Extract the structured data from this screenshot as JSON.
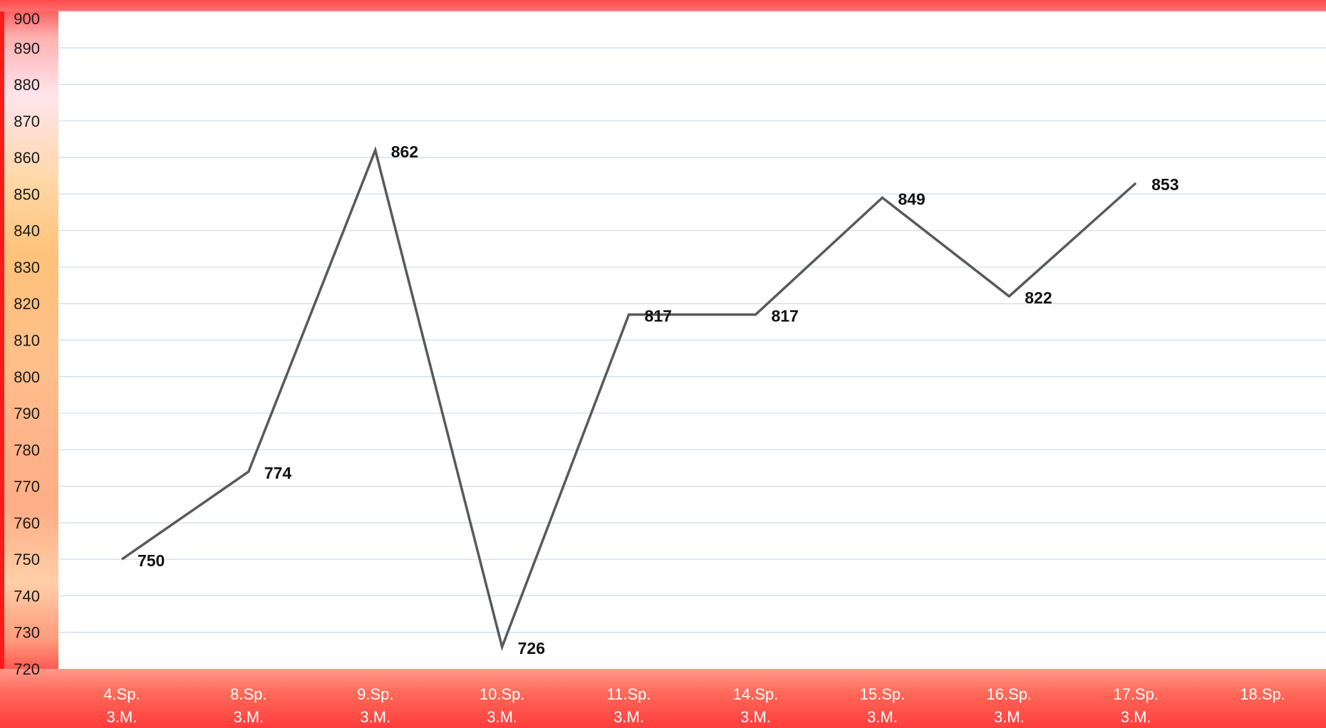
{
  "chart_data": {
    "type": "line",
    "categories": [
      [
        "4.Sp.",
        "3.M."
      ],
      [
        "8.Sp.",
        "3.M."
      ],
      [
        "9.Sp.",
        "3.M."
      ],
      [
        "10.Sp.",
        "3.M."
      ],
      [
        "11.Sp.",
        "3.M."
      ],
      [
        "14.Sp.",
        "3.M."
      ],
      [
        "15.Sp.",
        "3.M."
      ],
      [
        "16.Sp.",
        "3.M."
      ],
      [
        "17.Sp.",
        "3.M."
      ],
      [
        "18.Sp."
      ]
    ],
    "series": [
      {
        "values": [
          750,
          774,
          862,
          726,
          817,
          817,
          849,
          822,
          853,
          null
        ]
      }
    ],
    "data_labels": [
      "750",
      "774",
      "862",
      "726",
      "817",
      "817",
      "849",
      "822",
      "853"
    ],
    "ylim": [
      720,
      900
    ],
    "y_ticks": [
      720,
      730,
      740,
      750,
      760,
      770,
      780,
      790,
      800,
      810,
      820,
      830,
      840,
      850,
      860,
      870,
      880,
      890,
      900
    ],
    "grid": true,
    "legend": "none",
    "colors": {
      "line": "#595959",
      "grid": "#c9dcee",
      "frame": "#ff3b3b"
    }
  }
}
